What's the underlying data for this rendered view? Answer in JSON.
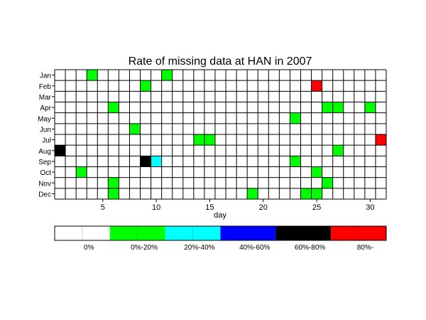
{
  "chart_data": {
    "type": "heatmap",
    "title": "Rate of missing data at HAN in 2007",
    "xlabel": "day",
    "ylabel": "",
    "months": [
      "Jan",
      "Feb",
      "Mar",
      "Apr",
      "May",
      "Jun",
      "Jul",
      "Aug",
      "Sep",
      "Oct",
      "Nov",
      "Dec"
    ],
    "days": 31,
    "x_ticks": [
      5,
      10,
      15,
      20,
      25,
      30
    ],
    "grid": true,
    "legend_position": "bottom",
    "legend": [
      {
        "label": "0%",
        "color": "#ffffff"
      },
      {
        "label": "0%-20%",
        "color": "#00ff00"
      },
      {
        "label": "20%-40%",
        "color": "#00ffff"
      },
      {
        "label": "40%-60%",
        "color": "#0000ff"
      },
      {
        "label": "60%-80%",
        "color": "#000000"
      },
      {
        "label": "80%-",
        "color": "#ff0000"
      }
    ],
    "cells": [
      {
        "month": "Jan",
        "day": 4,
        "category": 1
      },
      {
        "month": "Jan",
        "day": 11,
        "category": 1
      },
      {
        "month": "Feb",
        "day": 9,
        "category": 1
      },
      {
        "month": "Feb",
        "day": 25,
        "category": 5
      },
      {
        "month": "Apr",
        "day": 6,
        "category": 1
      },
      {
        "month": "Apr",
        "day": 26,
        "category": 1
      },
      {
        "month": "Apr",
        "day": 27,
        "category": 1
      },
      {
        "month": "Apr",
        "day": 30,
        "category": 1
      },
      {
        "month": "May",
        "day": 23,
        "category": 1
      },
      {
        "month": "Jun",
        "day": 8,
        "category": 1
      },
      {
        "month": "Jul",
        "day": 14,
        "category": 1
      },
      {
        "month": "Jul",
        "day": 15,
        "category": 1
      },
      {
        "month": "Jul",
        "day": 31,
        "category": 5
      },
      {
        "month": "Aug",
        "day": 1,
        "category": 4
      },
      {
        "month": "Aug",
        "day": 27,
        "category": 1
      },
      {
        "month": "Sep",
        "day": 9,
        "category": 4
      },
      {
        "month": "Sep",
        "day": 10,
        "category": 2
      },
      {
        "month": "Sep",
        "day": 23,
        "category": 1
      },
      {
        "month": "Oct",
        "day": 3,
        "category": 1
      },
      {
        "month": "Oct",
        "day": 25,
        "category": 1
      },
      {
        "month": "Nov",
        "day": 6,
        "category": 1
      },
      {
        "month": "Nov",
        "day": 26,
        "category": 1
      },
      {
        "month": "Dec",
        "day": 6,
        "category": 1
      },
      {
        "month": "Dec",
        "day": 19,
        "category": 1
      },
      {
        "month": "Dec",
        "day": 24,
        "category": 1
      },
      {
        "month": "Dec",
        "day": 25,
        "category": 1
      }
    ]
  }
}
